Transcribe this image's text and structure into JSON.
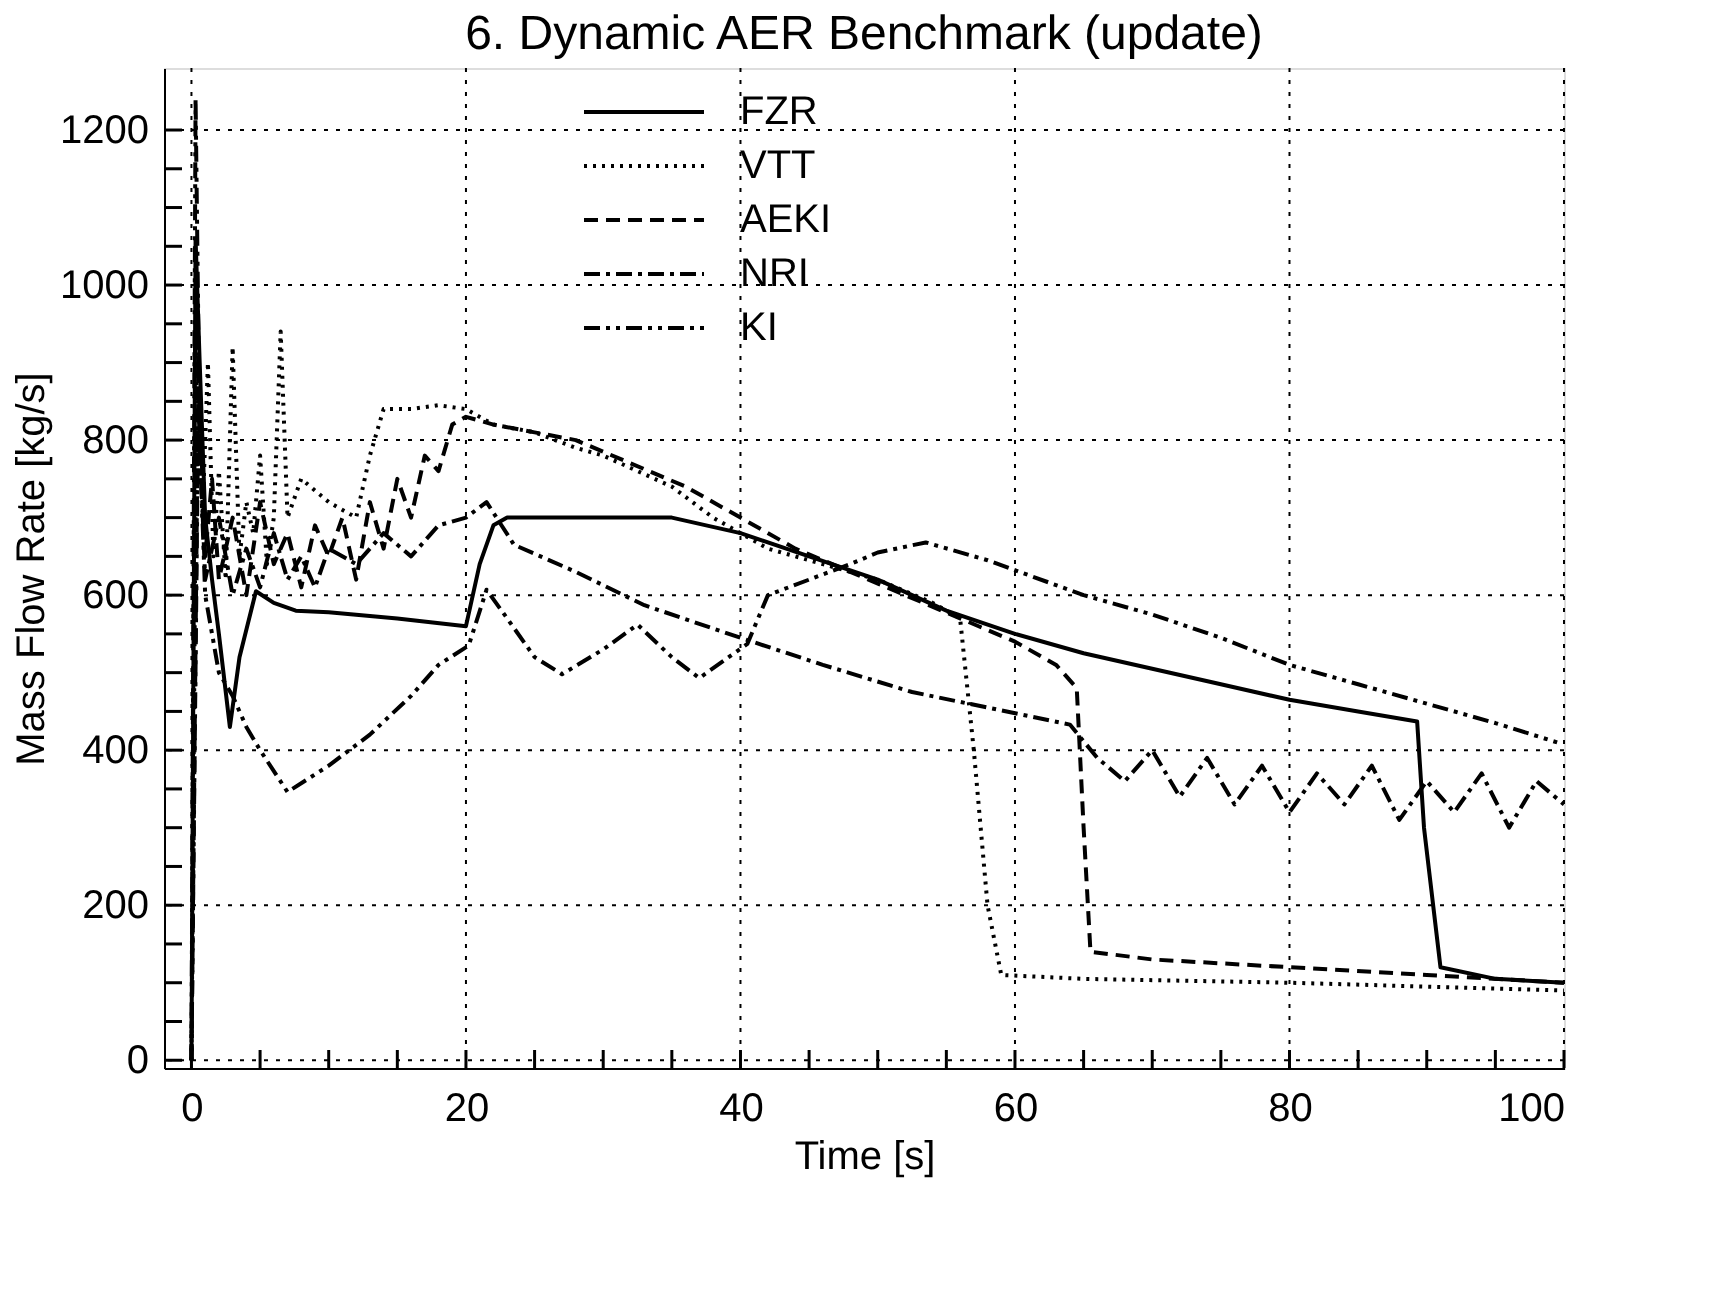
{
  "chart_data": {
    "type": "line",
    "title": "6. Dynamic AER Benchmark (update)",
    "xlabel": "Time [s]",
    "ylabel": "Mass Flow Rate [kg/s]",
    "xlim": [
      -2,
      100
    ],
    "ylim": [
      -10,
      1280
    ],
    "xticks": [
      0,
      {
        "value": 5,
        "label": null
      },
      {
        "value": 10,
        "label": null
      },
      {
        "value": 15,
        "label": null
      },
      20,
      {
        "value": 25,
        "label": null
      },
      {
        "value": 30,
        "label": null
      },
      {
        "value": 35,
        "label": null
      },
      40,
      {
        "value": 45,
        "label": null
      },
      {
        "value": 50,
        "label": null
      },
      {
        "value": 55,
        "label": null
      },
      60,
      {
        "value": 65,
        "label": null
      },
      {
        "value": 70,
        "label": null
      },
      {
        "value": 75,
        "label": null
      },
      80,
      {
        "value": 85,
        "label": null
      },
      {
        "value": 90,
        "label": null
      },
      {
        "value": 95,
        "label": null
      },
      100
    ],
    "yticks": [
      0,
      {
        "value": 50,
        "label": null
      },
      {
        "value": 100,
        "label": null
      },
      {
        "value": 150,
        "label": null
      },
      200,
      {
        "value": 250,
        "label": null
      },
      {
        "value": 300,
        "label": null
      },
      {
        "value": 350,
        "label": null
      },
      400,
      {
        "value": 450,
        "label": null
      },
      {
        "value": 500,
        "label": null
      },
      {
        "value": 550,
        "label": null
      },
      600,
      {
        "value": 650,
        "label": null
      },
      {
        "value": 700,
        "label": null
      },
      {
        "value": 750,
        "label": null
      },
      800,
      {
        "value": 850,
        "label": null
      },
      {
        "value": 900,
        "label": null
      },
      {
        "value": 950,
        "label": null
      },
      1000,
      {
        "value": 1050,
        "label": null
      },
      {
        "value": 1100,
        "label": null
      },
      {
        "value": 1150,
        "label": null
      },
      1200
    ],
    "grid": true,
    "legend": "top",
    "marker": "none",
    "series": [
      {
        "name": "FZR",
        "color": "#000000",
        "line_style": "solid",
        "x": [
          0,
          0.3,
          0.6,
          1,
          1.5,
          2,
          2.8,
          3.5,
          4.7,
          6,
          7.6,
          10,
          15,
          20,
          21,
          22,
          23,
          28,
          35,
          40,
          45,
          50,
          55,
          60,
          65,
          70,
          75,
          80,
          85,
          89.3,
          89.8,
          91,
          95,
          100
        ],
        "values": [
          0,
          1060,
          900,
          700,
          620,
          550,
          430,
          520,
          605,
          590,
          580,
          578,
          570,
          560,
          640,
          690,
          700,
          700,
          700,
          680,
          650,
          620,
          580,
          550,
          525,
          505,
          485,
          465,
          450,
          437,
          300,
          120,
          105,
          100
        ]
      },
      {
        "name": "VTT",
        "color": "#000000",
        "line_style": "dotted",
        "x": [
          0,
          0.4,
          0.8,
          1.2,
          1.6,
          2,
          2.5,
          3,
          3.5,
          4,
          4.5,
          5,
          5.5,
          6,
          6.5,
          7,
          8,
          10,
          12,
          13,
          14,
          16,
          18,
          20,
          22,
          25,
          28,
          30,
          35,
          38,
          42,
          46,
          50,
          54,
          56,
          57,
          58,
          59,
          65,
          80,
          100
        ],
        "values": [
          0,
          950,
          700,
          900,
          650,
          760,
          620,
          920,
          650,
          720,
          680,
          780,
          640,
          700,
          940,
          700,
          750,
          720,
          700,
          780,
          840,
          840,
          845,
          840,
          820,
          810,
          790,
          780,
          740,
          700,
          660,
          640,
          620,
          590,
          570,
          400,
          200,
          110,
          105,
          100,
          90
        ]
      },
      {
        "name": "AEKI",
        "color": "#000000",
        "line_style": "dashed",
        "x": [
          0,
          0.5,
          1,
          1.5,
          2,
          3,
          4,
          5,
          6,
          7,
          8,
          9,
          10,
          11,
          12,
          13,
          14,
          15,
          16,
          17,
          18,
          19,
          20,
          22,
          25,
          28,
          32,
          36,
          40,
          44,
          48,
          52,
          56,
          60,
          63,
          64.5,
          65,
          65.5,
          70,
          80,
          90,
          100
        ],
        "values": [
          0,
          900,
          650,
          750,
          620,
          700,
          600,
          720,
          640,
          680,
          610,
          690,
          650,
          700,
          620,
          720,
          660,
          750,
          700,
          780,
          760,
          820,
          830,
          820,
          810,
          800,
          770,
          740,
          700,
          660,
          630,
          600,
          570,
          540,
          510,
          480,
          300,
          140,
          130,
          120,
          110,
          100
        ]
      },
      {
        "name": "NRI",
        "color": "#000000",
        "line_style": "dashdot",
        "x": [
          0,
          0.5,
          1,
          2,
          3,
          4,
          5,
          6,
          7,
          8,
          9,
          10,
          12,
          14,
          16,
          18,
          20,
          21.5,
          23.5,
          28,
          33,
          40,
          46,
          52.5,
          58,
          64,
          66,
          68,
          70,
          72,
          74,
          76,
          78,
          80,
          82,
          84,
          86,
          88,
          90,
          92,
          94,
          96,
          98,
          100
        ],
        "values": [
          0,
          850,
          620,
          700,
          600,
          660,
          610,
          680,
          620,
          650,
          610,
          660,
          640,
          680,
          650,
          690,
          700,
          720,
          665,
          630,
          587,
          545,
          510,
          475,
          455,
          433,
          390,
          360,
          400,
          340,
          390,
          330,
          380,
          320,
          370,
          330,
          380,
          310,
          360,
          320,
          370,
          300,
          360,
          330
        ]
      },
      {
        "name": "KI",
        "color": "#000000",
        "line_style": "dashdotdot",
        "x": [
          0,
          0.3,
          0.6,
          1,
          2,
          3,
          4,
          5,
          7,
          10,
          13,
          16,
          18,
          20.2,
          21.5,
          23,
          25,
          27,
          30,
          32.5,
          35,
          37,
          40.5,
          42,
          45,
          48,
          50,
          53.5,
          58,
          65,
          70,
          75,
          80,
          85,
          90,
          95,
          99.5
        ],
        "values": [
          0,
          1240,
          800,
          600,
          500,
          470,
          430,
          400,
          346,
          380,
          420,
          470,
          510,
          535,
          607,
          570,
          520,
          498,
          530,
          562,
          520,
          493,
          537,
          600,
          620,
          640,
          655,
          668,
          645,
          600,
          575,
          545,
          510,
          485,
          460,
          435,
          410
        ]
      }
    ]
  }
}
